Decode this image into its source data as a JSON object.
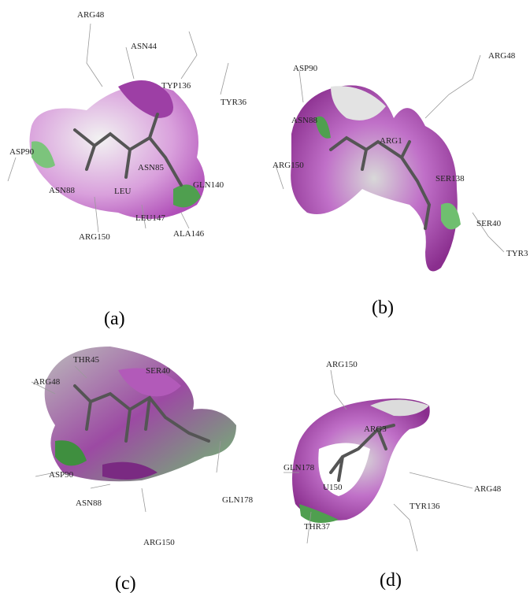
{
  "panels": [
    {
      "label": "(a)",
      "residues": [
        "ARG48",
        "ASN44",
        "TYP136",
        "TYR36",
        "ASP90",
        "ASN85",
        "LEU",
        "GLN140",
        "ASN88",
        "ARG150",
        "LEU147",
        "ALA146"
      ]
    },
    {
      "label": "(b)",
      "residues": [
        "ARG48",
        "ASP90",
        "ASN88",
        "ARG1",
        "ARG150",
        "SER138",
        "SER40",
        "TYR3"
      ]
    },
    {
      "label": "(c)",
      "residues": [
        "THR45",
        "SER40",
        "ARG48",
        "ASP90",
        "ASN88",
        "GLN178",
        "ARG150"
      ]
    },
    {
      "label": "(d)",
      "residues": [
        "ARG150",
        "ARG3",
        "GLN178",
        "U150",
        "THR37",
        "TYR136",
        "ARG48"
      ]
    }
  ]
}
